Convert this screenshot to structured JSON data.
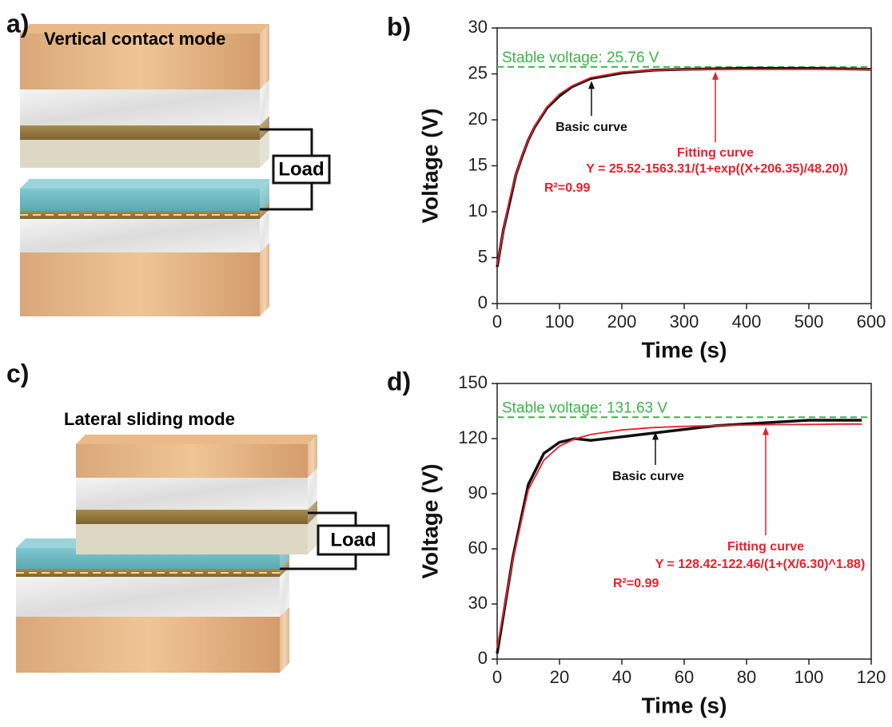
{
  "panels": [
    {
      "label": "a)",
      "title": "Vertical contact mode",
      "load": "Load"
    },
    {
      "label": "c)",
      "title": "Lateral sliding mode",
      "load": "Load"
    }
  ],
  "chart_data": [
    {
      "type": "line",
      "panel": "b)",
      "x_label": "Time (s)",
      "y_label": "Voltage (V)",
      "x": [
        0,
        10,
        20,
        30,
        40,
        50,
        60,
        80,
        100,
        120,
        150,
        200,
        250,
        300,
        400,
        500,
        600
      ],
      "series": [
        {
          "name": "Basic curve",
          "color": "#111111",
          "values": [
            4,
            8,
            11,
            14,
            16,
            17.8,
            19.2,
            21.3,
            22.6,
            23.6,
            24.5,
            25.1,
            25.4,
            25.5,
            25.6,
            25.6,
            25.5
          ]
        },
        {
          "name": "Fitting curve",
          "color": "#e8202a",
          "values": [
            4.2,
            7.9,
            11.4,
            14,
            16.1,
            17.8,
            19.3,
            21.4,
            22.8,
            23.7,
            24.6,
            25.2,
            25.4,
            25.5,
            25.5,
            25.5,
            25.5
          ]
        }
      ],
      "reference_line": {
        "value": 25.76,
        "label": "Stable voltage: 25.76 V",
        "color": "#3cb44b"
      },
      "annotations": [
        {
          "text": "Y = 25.52-1563.31/(1+exp((X+206.35)/48.20))",
          "color": "#e8202a"
        },
        {
          "text": "R²=0.99",
          "color": "#e8202a"
        }
      ],
      "xlim": [
        0,
        600
      ],
      "xticks": [
        0,
        100,
        200,
        300,
        400,
        500,
        600
      ],
      "ylim": [
        0,
        30
      ],
      "yticks": [
        0,
        5,
        10,
        15,
        20,
        25,
        30
      ]
    },
    {
      "type": "line",
      "panel": "d)",
      "x_label": "Time (s)",
      "y_label": "Voltage (V)",
      "x": [
        0,
        5,
        10,
        15,
        20,
        25,
        30,
        40,
        50,
        60,
        70,
        80,
        90,
        100,
        110,
        117
      ],
      "series": [
        {
          "name": "Basic curve",
          "color": "#111111",
          "values": [
            3,
            55,
            95,
            112,
            118,
            120,
            119,
            121,
            123,
            125,
            127,
            128,
            129,
            130,
            130,
            130
          ]
        },
        {
          "name": "Fitting curve",
          "color": "#e8202a",
          "values": [
            6,
            54.1,
            92.2,
            108.3,
            115.9,
            119.9,
            122.2,
            124.7,
            126,
            126.7,
            127.1,
            127.4,
            127.6,
            127.7,
            127.9,
            127.9
          ]
        }
      ],
      "reference_line": {
        "value": 131.63,
        "label": "Stable voltage: 131.63 V",
        "color": "#3cb44b"
      },
      "annotations": [
        {
          "text": "Y = 128.42-122.46/(1+(X/6.30)^1.88)",
          "color": "#e8202a"
        },
        {
          "text": "R²=0.99",
          "color": "#e8202a"
        }
      ],
      "xlim": [
        0,
        120
      ],
      "xticks": [
        0,
        20,
        40,
        60,
        80,
        100,
        120
      ],
      "ylim": [
        0,
        150
      ],
      "yticks": [
        0,
        30,
        60,
        90,
        120,
        150
      ]
    }
  ]
}
